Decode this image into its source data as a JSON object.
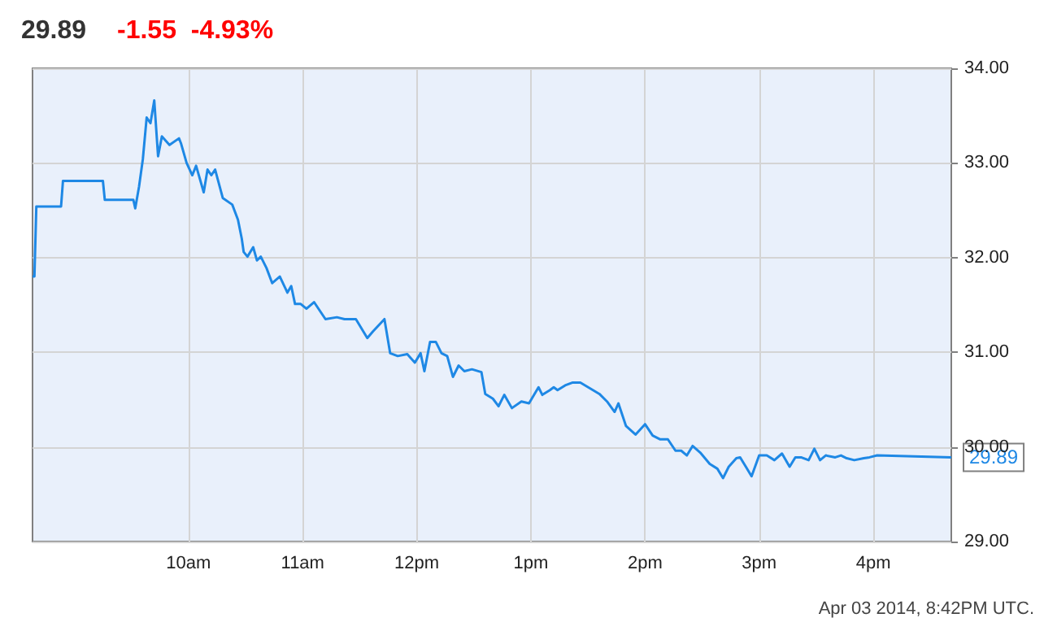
{
  "chart_data": {
    "type": "line",
    "title": "29.89",
    "subtitle": "-1.55  -4.93%",
    "annotations": [
      "Apr 03 2014, 8:42PM UTC.",
      {
        "text": "29.89",
        "x": "2014-04-03T16:41",
        "y": 29.89
      }
    ],
    "x": [
      "2014-04-03T08:38",
      "2014-04-03T08:39",
      "2014-04-03T08:40",
      "2014-04-03T08:53",
      "2014-04-03T08:54",
      "2014-04-03T09:15",
      "2014-04-03T09:16",
      "2014-04-03T09:31",
      "2014-04-03T09:32",
      "2014-04-03T09:34",
      "2014-04-03T09:36",
      "2014-04-03T09:38",
      "2014-04-03T09:40",
      "2014-04-03T09:42",
      "2014-04-03T09:44",
      "2014-04-03T09:46",
      "2014-04-03T09:50",
      "2014-04-03T09:55",
      "2014-04-03T09:56",
      "2014-04-03T09:59",
      "2014-04-03T10:02",
      "2014-04-03T10:04",
      "2014-04-03T10:08",
      "2014-04-03T10:10",
      "2014-04-03T10:12",
      "2014-04-03T10:14",
      "2014-04-03T10:18",
      "2014-04-03T10:23",
      "2014-04-03T10:26",
      "2014-04-03T10:28",
      "2014-04-03T10:29",
      "2014-04-03T10:31",
      "2014-04-03T10:34",
      "2014-04-03T10:36",
      "2014-04-03T10:38",
      "2014-04-03T10:41",
      "2014-04-03T10:44",
      "2014-04-03T10:48",
      "2014-04-03T10:52",
      "2014-04-03T10:54",
      "2014-04-03T10:56",
      "2014-04-03T10:59",
      "2014-04-03T11:02",
      "2014-04-03T11:06",
      "2014-04-03T11:12",
      "2014-04-03T11:18",
      "2014-04-03T11:22",
      "2014-04-03T11:28",
      "2014-04-03T11:34",
      "2014-04-03T11:37",
      "2014-04-03T11:43",
      "2014-04-03T11:46",
      "2014-04-03T11:50",
      "2014-04-03T11:55",
      "2014-04-03T11:59",
      "2014-04-03T12:02",
      "2014-04-03T12:04",
      "2014-04-03T12:07",
      "2014-04-03T12:10",
      "2014-04-03T12:13",
      "2014-04-03T12:16",
      "2014-04-03T12:19",
      "2014-04-03T12:22",
      "2014-04-03T12:25",
      "2014-04-03T12:29",
      "2014-04-03T12:34",
      "2014-04-03T12:36",
      "2014-04-03T12:40",
      "2014-04-03T12:43",
      "2014-04-03T12:46",
      "2014-04-03T12:50",
      "2014-04-03T12:55",
      "2014-04-03T12:59",
      "2014-04-03T13:04",
      "2014-04-03T13:06",
      "2014-04-03T13:10",
      "2014-04-03T13:12",
      "2014-04-03T13:14",
      "2014-04-03T13:18",
      "2014-04-03T13:22",
      "2014-04-03T13:26",
      "2014-04-03T13:31",
      "2014-04-03T13:36",
      "2014-04-03T13:40",
      "2014-04-03T13:44",
      "2014-04-03T13:46",
      "2014-04-03T13:50",
      "2014-04-03T13:55",
      "2014-04-03T14:00",
      "2014-04-03T14:04",
      "2014-04-03T14:08",
      "2014-04-03T14:12",
      "2014-04-03T14:16",
      "2014-04-03T14:19",
      "2014-04-03T14:22",
      "2014-04-03T14:25",
      "2014-04-03T14:29",
      "2014-04-03T14:34",
      "2014-04-03T14:38",
      "2014-04-03T14:41",
      "2014-04-03T14:44",
      "2014-04-03T14:48",
      "2014-04-03T14:50",
      "2014-04-03T14:53",
      "2014-04-03T14:56",
      "2014-04-03T15:00",
      "2014-04-03T15:04",
      "2014-04-03T15:08",
      "2014-04-03T15:12",
      "2014-04-03T15:16",
      "2014-04-03T15:19",
      "2014-04-03T15:22",
      "2014-04-03T15:26",
      "2014-04-03T15:29",
      "2014-04-03T15:32",
      "2014-04-03T15:35",
      "2014-04-03T15:40",
      "2014-04-03T15:43",
      "2014-04-03T15:46",
      "2014-04-03T15:50",
      "2014-04-03T15:55",
      "2014-04-03T15:58",
      "2014-04-03T16:02",
      "2014-04-03T16:41"
    ],
    "series": [
      {
        "color": "#1e88e5",
        "values": [
          31.8,
          31.8,
          32.54,
          32.54,
          32.81,
          32.81,
          32.61,
          32.61,
          32.52,
          32.75,
          33.04,
          33.48,
          33.42,
          33.66,
          33.07,
          33.28,
          33.19,
          33.26,
          33.21,
          33.0,
          32.87,
          32.97,
          32.69,
          32.93,
          32.87,
          32.93,
          32.63,
          32.56,
          32.4,
          32.2,
          32.06,
          32.01,
          32.11,
          31.97,
          32.01,
          31.89,
          31.73,
          31.8,
          31.63,
          31.7,
          31.51,
          31.51,
          31.46,
          31.53,
          31.35,
          31.37,
          31.35,
          31.35,
          31.15,
          31.22,
          31.35,
          30.99,
          30.96,
          30.98,
          30.89,
          30.99,
          30.8,
          31.11,
          31.11,
          30.99,
          30.96,
          30.74,
          30.86,
          30.8,
          30.82,
          30.79,
          30.56,
          30.51,
          30.43,
          30.55,
          30.41,
          30.48,
          30.46,
          30.63,
          30.55,
          30.6,
          30.63,
          30.6,
          30.65,
          30.68,
          30.68,
          30.62,
          30.56,
          30.48,
          30.37,
          30.46,
          30.22,
          30.13,
          30.24,
          30.12,
          30.08,
          30.08,
          29.96,
          29.96,
          29.91,
          30.01,
          29.94,
          29.82,
          29.77,
          29.67,
          29.79,
          29.88,
          29.89,
          29.79,
          29.69,
          29.91,
          29.91,
          29.86,
          29.93,
          29.79,
          29.89,
          29.89,
          29.86,
          29.98,
          29.86,
          29.91,
          29.89,
          29.91,
          29.88,
          29.86,
          29.88,
          29.89,
          29.91,
          29.89
        ]
      }
    ],
    "xlim": [
      "2014-04-03T08:38",
      "2014-04-03T16:41"
    ],
    "xticks": [
      {
        "value": "2014-04-03T10:00",
        "label": "10am"
      },
      {
        "value": "2014-04-03T11:00",
        "label": "11am"
      },
      {
        "value": "2014-04-03T12:00",
        "label": "12pm"
      },
      {
        "value": "2014-04-03T13:00",
        "label": "1pm"
      },
      {
        "value": "2014-04-03T14:00",
        "label": "2pm"
      },
      {
        "value": "2014-04-03T15:00",
        "label": "3pm"
      },
      {
        "value": "2014-04-03T16:00",
        "label": "4pm"
      }
    ],
    "ylim": [
      29,
      34
    ],
    "yticks": [
      {
        "value": 29,
        "label": "29.00"
      },
      {
        "value": 30,
        "label": "30.00"
      },
      {
        "value": 31,
        "label": "31.00"
      },
      {
        "value": 32,
        "label": "32.00"
      },
      {
        "value": 33,
        "label": "33.00"
      },
      {
        "value": 34,
        "label": "34.00"
      }
    ],
    "grid": true,
    "marker": "none",
    "line_style": "solid"
  }
}
